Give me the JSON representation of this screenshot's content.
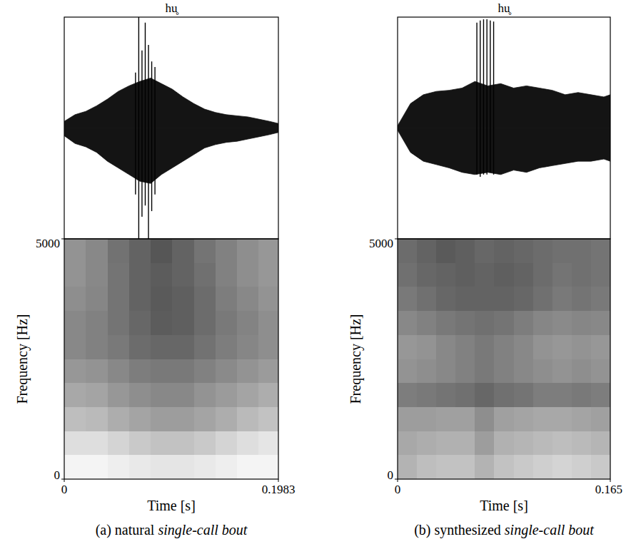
{
  "chart_data": [
    {
      "type": "waveform_spectrogram",
      "title": "hu̥",
      "caption": "(a) natural",
      "caption_italic": "single-call bout",
      "x_label": "Time [s]",
      "xlim": [
        0,
        0.1983
      ],
      "xticks": [
        0,
        0.1983
      ],
      "y_label": "Frequency [Hz]",
      "ylim": [
        0,
        5000
      ],
      "yticks": [
        0,
        5000
      ],
      "waveform": {
        "ylim": [
          -1,
          1
        ],
        "x": [
          0,
          0.01,
          0.02,
          0.03,
          0.04,
          0.05,
          0.06,
          0.07,
          0.08,
          0.09,
          0.1,
          0.11,
          0.12,
          0.13,
          0.14,
          0.15,
          0.16,
          0.17,
          0.18,
          0.19,
          0.1983
        ],
        "upper": [
          0.06,
          0.12,
          0.15,
          0.2,
          0.26,
          0.33,
          0.38,
          0.42,
          0.45,
          0.4,
          0.35,
          0.28,
          0.22,
          0.17,
          0.14,
          0.12,
          0.11,
          0.1,
          0.08,
          0.06,
          0.04
        ],
        "lower": [
          -0.07,
          -0.14,
          -0.17,
          -0.22,
          -0.3,
          -0.36,
          -0.42,
          -0.48,
          -0.5,
          -0.42,
          -0.36,
          -0.3,
          -0.24,
          -0.18,
          -0.15,
          -0.13,
          -0.12,
          -0.1,
          -0.08,
          -0.06,
          -0.04
        ],
        "spikes": {
          "x": [
            0.066,
            0.069,
            0.072,
            0.075,
            0.078,
            0.081,
            0.084
          ],
          "top": [
            0.5,
            1.2,
            0.7,
            0.95,
            0.75,
            0.6,
            0.55
          ],
          "bottom": [
            -0.6,
            -1.2,
            -0.8,
            -0.7,
            -1.2,
            -0.75,
            -0.6
          ]
        }
      },
      "spectrogram": {
        "zlim": [
          0,
          1
        ],
        "time_edges": [
          0,
          0.02,
          0.04,
          0.06,
          0.08,
          0.1,
          0.12,
          0.14,
          0.16,
          0.18,
          0.1983
        ],
        "freq_edges": [
          0,
          500,
          1000,
          1500,
          2000,
          2500,
          3000,
          3500,
          4000,
          4500,
          5000
        ],
        "intensity": [
          [
            0.05,
            0.05,
            0.08,
            0.1,
            0.12,
            0.12,
            0.1,
            0.08,
            0.05,
            0.05
          ],
          [
            0.15,
            0.15,
            0.2,
            0.25,
            0.28,
            0.28,
            0.25,
            0.2,
            0.15,
            0.12
          ],
          [
            0.3,
            0.32,
            0.38,
            0.42,
            0.45,
            0.45,
            0.42,
            0.38,
            0.32,
            0.28
          ],
          [
            0.4,
            0.42,
            0.48,
            0.52,
            0.55,
            0.55,
            0.5,
            0.46,
            0.42,
            0.38
          ],
          [
            0.48,
            0.5,
            0.55,
            0.6,
            0.62,
            0.62,
            0.58,
            0.54,
            0.5,
            0.46
          ],
          [
            0.55,
            0.58,
            0.62,
            0.68,
            0.7,
            0.7,
            0.65,
            0.6,
            0.56,
            0.52
          ],
          [
            0.55,
            0.58,
            0.64,
            0.7,
            0.75,
            0.74,
            0.68,
            0.62,
            0.57,
            0.52
          ],
          [
            0.52,
            0.56,
            0.64,
            0.72,
            0.76,
            0.74,
            0.68,
            0.6,
            0.55,
            0.5
          ],
          [
            0.5,
            0.55,
            0.64,
            0.72,
            0.75,
            0.72,
            0.66,
            0.58,
            0.52,
            0.48
          ],
          [
            0.5,
            0.55,
            0.65,
            0.72,
            0.78,
            0.72,
            0.64,
            0.58,
            0.52,
            0.48
          ]
        ]
      }
    },
    {
      "type": "waveform_spectrogram",
      "title": "hu̥",
      "caption": "(b) synthesized",
      "caption_italic": "single-call bout",
      "x_label": "Time [s]",
      "xlim": [
        0,
        0.165
      ],
      "xticks": [
        0,
        0.165
      ],
      "y_label": "Frequency [Hz]",
      "ylim": [
        0,
        5000
      ],
      "yticks": [
        0,
        5000
      ],
      "waveform": {
        "ylim": [
          -1,
          1
        ],
        "x": [
          0,
          0.01,
          0.02,
          0.03,
          0.04,
          0.05,
          0.06,
          0.07,
          0.08,
          0.09,
          0.1,
          0.11,
          0.12,
          0.13,
          0.14,
          0.15,
          0.16,
          0.165
        ],
        "upper": [
          0.02,
          0.22,
          0.3,
          0.33,
          0.34,
          0.36,
          0.42,
          0.38,
          0.4,
          0.36,
          0.38,
          0.36,
          0.34,
          0.3,
          0.32,
          0.3,
          0.28,
          0.3
        ],
        "lower": [
          -0.02,
          -0.22,
          -0.3,
          -0.33,
          -0.36,
          -0.4,
          -0.42,
          -0.4,
          -0.42,
          -0.38,
          -0.4,
          -0.36,
          -0.34,
          -0.32,
          -0.3,
          -0.3,
          -0.28,
          -0.3
        ],
        "spikes": {
          "x": [
            0.0615,
            0.0641,
            0.0667,
            0.0693,
            0.0719,
            0.0745
          ],
          "top": [
            0.95,
            0.97,
            0.98,
            0.98,
            0.97,
            0.96
          ],
          "bottom": [
            -0.42,
            -0.44,
            -0.42,
            -0.42,
            -0.4,
            -0.42
          ]
        }
      },
      "spectrogram": {
        "zlim": [
          0,
          1
        ],
        "time_edges": [
          0,
          0.015,
          0.03,
          0.045,
          0.06,
          0.075,
          0.09,
          0.105,
          0.12,
          0.135,
          0.15,
          0.165
        ],
        "freq_edges": [
          0,
          500,
          1000,
          1500,
          2000,
          2500,
          3000,
          3500,
          4000,
          4500,
          5000
        ],
        "intensity": [
          [
            0.35,
            0.3,
            0.28,
            0.28,
            0.35,
            0.28,
            0.25,
            0.22,
            0.2,
            0.22,
            0.25
          ],
          [
            0.4,
            0.38,
            0.36,
            0.36,
            0.45,
            0.36,
            0.34,
            0.32,
            0.3,
            0.32,
            0.34
          ],
          [
            0.45,
            0.45,
            0.44,
            0.44,
            0.52,
            0.44,
            0.42,
            0.4,
            0.4,
            0.42,
            0.44
          ],
          [
            0.6,
            0.62,
            0.64,
            0.66,
            0.7,
            0.66,
            0.64,
            0.6,
            0.6,
            0.62,
            0.6
          ],
          [
            0.5,
            0.52,
            0.55,
            0.58,
            0.62,
            0.58,
            0.55,
            0.52,
            0.5,
            0.52,
            0.5
          ],
          [
            0.48,
            0.5,
            0.55,
            0.58,
            0.62,
            0.58,
            0.55,
            0.5,
            0.48,
            0.5,
            0.48
          ],
          [
            0.55,
            0.58,
            0.62,
            0.64,
            0.66,
            0.64,
            0.6,
            0.56,
            0.54,
            0.56,
            0.55
          ],
          [
            0.62,
            0.66,
            0.7,
            0.72,
            0.72,
            0.72,
            0.7,
            0.66,
            0.62,
            0.64,
            0.62
          ],
          [
            0.66,
            0.7,
            0.72,
            0.74,
            0.72,
            0.74,
            0.72,
            0.68,
            0.64,
            0.66,
            0.64
          ],
          [
            0.68,
            0.72,
            0.76,
            0.74,
            0.7,
            0.72,
            0.7,
            0.68,
            0.66,
            0.66,
            0.64
          ]
        ]
      }
    }
  ]
}
